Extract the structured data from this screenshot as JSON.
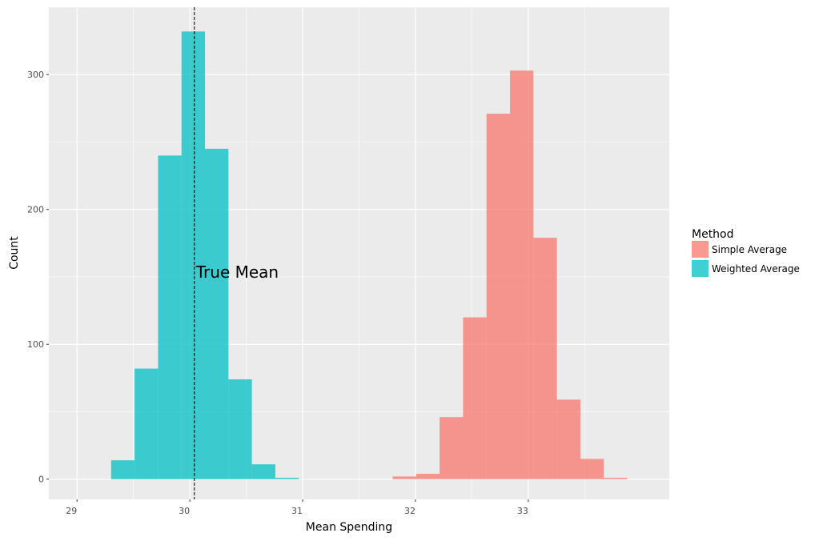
{
  "chart_data": {
    "type": "bar",
    "subtype": "histogram",
    "xlabel": "Mean Spending",
    "ylabel": "Count",
    "xlim": [
      28.75,
      34.25
    ],
    "ylim": [
      -15,
      350
    ],
    "x_ticks": [
      29,
      30,
      31,
      32,
      33
    ],
    "y_ticks": [
      0,
      100,
      200,
      300
    ],
    "bin_width": 0.208,
    "grid": true,
    "legend": {
      "title": "Method",
      "position": "right"
    },
    "series": [
      {
        "name": "Weighted Average",
        "color": "#00BFC4",
        "bins": [
          {
            "x0": 29.302,
            "x1": 29.51,
            "count": 14
          },
          {
            "x0": 29.51,
            "x1": 29.718,
            "count": 82
          },
          {
            "x0": 29.718,
            "x1": 29.926,
            "count": 240
          },
          {
            "x0": 29.926,
            "x1": 30.134,
            "count": 332
          },
          {
            "x0": 30.134,
            "x1": 30.342,
            "count": 245
          },
          {
            "x0": 30.342,
            "x1": 30.55,
            "count": 74
          },
          {
            "x0": 30.55,
            "x1": 30.758,
            "count": 11
          },
          {
            "x0": 30.758,
            "x1": 30.966,
            "count": 1
          }
        ]
      },
      {
        "name": "Simple Average",
        "color": "#F8766D",
        "bins": [
          {
            "x0": 31.798,
            "x1": 32.006,
            "count": 2
          },
          {
            "x0": 32.006,
            "x1": 32.214,
            "count": 4
          },
          {
            "x0": 32.214,
            "x1": 32.422,
            "count": 46
          },
          {
            "x0": 32.422,
            "x1": 32.63,
            "count": 120
          },
          {
            "x0": 32.63,
            "x1": 32.838,
            "count": 271
          },
          {
            "x0": 32.838,
            "x1": 33.046,
            "count": 303
          },
          {
            "x0": 33.046,
            "x1": 33.254,
            "count": 179
          },
          {
            "x0": 33.254,
            "x1": 33.462,
            "count": 59
          },
          {
            "x0": 33.462,
            "x1": 33.67,
            "count": 15
          },
          {
            "x0": 33.67,
            "x1": 33.878,
            "count": 1
          }
        ]
      }
    ],
    "reference_line": {
      "x": 30.04,
      "style": "dashed",
      "color": "#000000"
    },
    "annotation": {
      "text": "True Mean",
      "x": 30.04,
      "y": 150
    }
  }
}
